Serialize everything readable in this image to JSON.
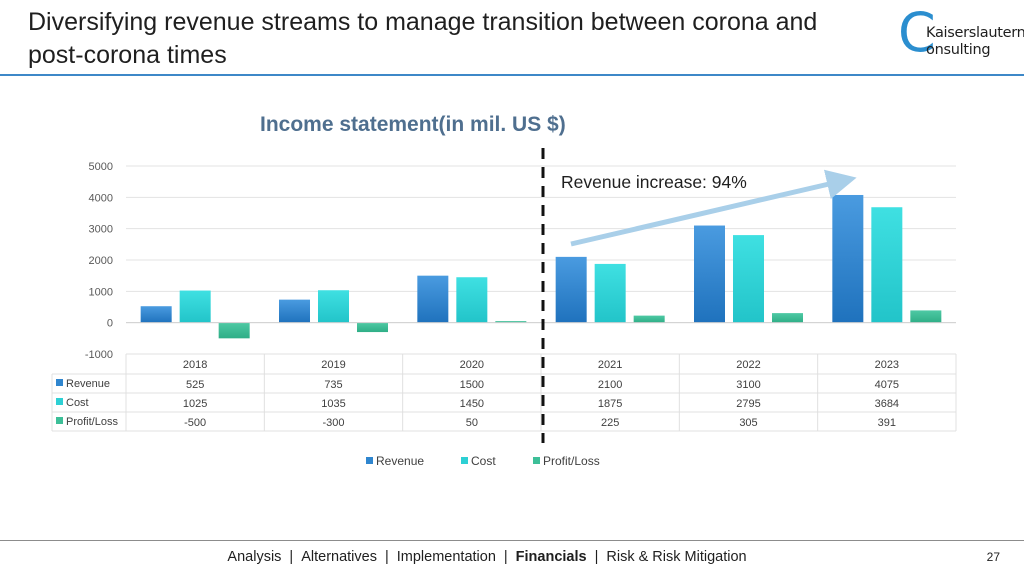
{
  "slide": {
    "title": "Diversifying revenue streams to manage transition between corona and post-corona times",
    "page_number": "27"
  },
  "logo": {
    "letter": "C",
    "line1": "Kaiserslautern",
    "line2": "onsulting"
  },
  "annotation": {
    "text": "Revenue increase: 94%"
  },
  "footer": {
    "items": [
      {
        "label": "Analysis",
        "active": false
      },
      {
        "label": "Alternatives",
        "active": false
      },
      {
        "label": "Implementation",
        "active": false
      },
      {
        "label": "Financials",
        "active": true
      },
      {
        "label": "Risk & Risk Mitigation",
        "active": false
      }
    ],
    "separator": "|"
  },
  "colors": {
    "revenue": "#2f86cf",
    "cost": "#2dd0d4",
    "profit": "#3dbf98",
    "arrow": "#a9cfe9",
    "title_rule": "#3d88c8"
  },
  "chart_data": {
    "type": "bar",
    "title": "Income statement(in mil. US $)",
    "categories": [
      "2018",
      "2019",
      "2020",
      "2021",
      "2022",
      "2023"
    ],
    "series": [
      {
        "name": "Revenue",
        "values": [
          525,
          735,
          1500,
          2100,
          3100,
          4075
        ]
      },
      {
        "name": "Cost",
        "values": [
          1025,
          1035,
          1450,
          1875,
          2795,
          3684
        ]
      },
      {
        "name": "Profit/Loss",
        "values": [
          -500,
          -300,
          50,
          225,
          305,
          391
        ]
      }
    ],
    "yticks": [
      5000,
      4000,
      3000,
      2000,
      1000,
      0,
      -1000
    ],
    "ylim": [
      -1000,
      5000
    ],
    "grid": true,
    "legend": "bottom",
    "data_table": true,
    "divider_after_category": "2020"
  }
}
